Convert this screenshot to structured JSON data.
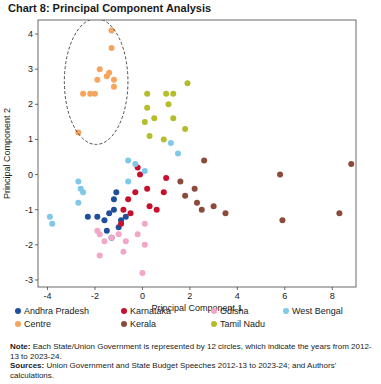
{
  "chart_data": {
    "type": "scatter",
    "title": "Chart 8: Principal Component Analysis",
    "x_label": "Principal Component 1",
    "y_label": "Principal Component 2",
    "xlim": [
      -4.4,
      9
    ],
    "ylim": [
      -3.2,
      4.4
    ],
    "xticks": [
      -4,
      -2,
      0,
      2,
      4,
      6,
      8
    ],
    "yticks": [
      -3,
      -2,
      -1,
      0,
      1,
      2,
      3,
      4
    ],
    "grid": false,
    "legend": "bottom",
    "marker": "circle",
    "series": [
      {
        "name": "Andhra Pradesh",
        "color": "#1f4e9c",
        "x": [
          -2.3,
          -1.9,
          -1.6,
          -1.4,
          -1.2,
          -1.1,
          -1.0,
          -0.9,
          -1.3,
          -1.5,
          -0.7,
          -1.2
        ],
        "values": [
          -1.2,
          -1.2,
          -1.3,
          -1.1,
          -0.7,
          -0.5,
          -1.5,
          -1.3,
          -1.8,
          -1.6,
          -1.2,
          -1.0
        ]
      },
      {
        "name": "Centre",
        "color": "#f5a55e",
        "x": [
          -1.3,
          -1.3,
          -1.8,
          -1.5,
          -1.2,
          -1.2,
          -1.9,
          -2.0,
          -2.5,
          -2.2,
          -2.7,
          -1.4
        ],
        "values": [
          4.1,
          3.6,
          3.0,
          2.8,
          2.7,
          2.5,
          2.7,
          2.3,
          2.3,
          2.3,
          1.2,
          2.9
        ]
      },
      {
        "name": "Karnataka",
        "color": "#c8102e",
        "x": [
          -0.6,
          -0.2,
          -0.3,
          -0.5,
          0.2,
          0.3,
          0.6,
          0.9,
          1.0,
          -0.8,
          -0.9,
          -0.1
        ],
        "values": [
          -0.7,
          0.2,
          -0.5,
          -1.1,
          -0.4,
          -0.9,
          -1.0,
          -0.5,
          -0.1,
          -1.0,
          -1.4,
          0.0
        ]
      },
      {
        "name": "Kerala",
        "color": "#8b4a3a",
        "x": [
          1.6,
          1.8,
          2.2,
          2.3,
          2.5,
          2.6,
          3.0,
          3.5,
          5.8,
          5.9,
          8.3,
          8.8
        ],
        "values": [
          -0.2,
          -0.6,
          -0.4,
          -0.8,
          -1.0,
          0.4,
          -0.9,
          -1.1,
          0.0,
          -1.3,
          -1.1,
          0.3
        ]
      },
      {
        "name": "Odisha",
        "color": "#f2a6c8",
        "x": [
          -1.8,
          -1.6,
          -1.8,
          -1.3,
          -1.0,
          -0.7,
          -0.8,
          -0.2,
          0.1,
          0.1,
          0.0,
          -1.9
        ],
        "values": [
          -1.7,
          -1.9,
          -2.3,
          -1.8,
          -1.7,
          -1.9,
          -2.2,
          -1.7,
          -2.0,
          -1.4,
          -2.8,
          -1.6
        ]
      },
      {
        "name": "Tamil Nadu",
        "color": "#b5bd2b",
        "x": [
          0.2,
          0.2,
          0.1,
          0.3,
          0.9,
          1.0,
          1.1,
          1.3,
          1.3,
          1.8,
          1.9,
          0.5
        ],
        "values": [
          2.3,
          1.9,
          1.5,
          1.1,
          1.0,
          2.3,
          2.0,
          2.3,
          1.6,
          1.3,
          2.6,
          1.6
        ]
      },
      {
        "name": "West Bengal",
        "color": "#7fc8e8",
        "x": [
          -3.9,
          -3.8,
          -2.7,
          -2.6,
          -2.5,
          -2.7,
          -0.6,
          -0.3,
          -0.6,
          0.1,
          1.2,
          1.5
        ],
        "values": [
          -1.2,
          -1.4,
          -0.2,
          -0.4,
          -0.5,
          -0.8,
          0.4,
          0.3,
          -0.2,
          0.1,
          0.9,
          0.6
        ]
      }
    ],
    "note": "Note: Each State/Union Government is represented by 12 circles, which indicate the years from 2012-13 to 2023-24.",
    "source": "Sources: Union Government and State Budget Speeches 2012-13 to 2023-24; and Authors' calculations."
  }
}
